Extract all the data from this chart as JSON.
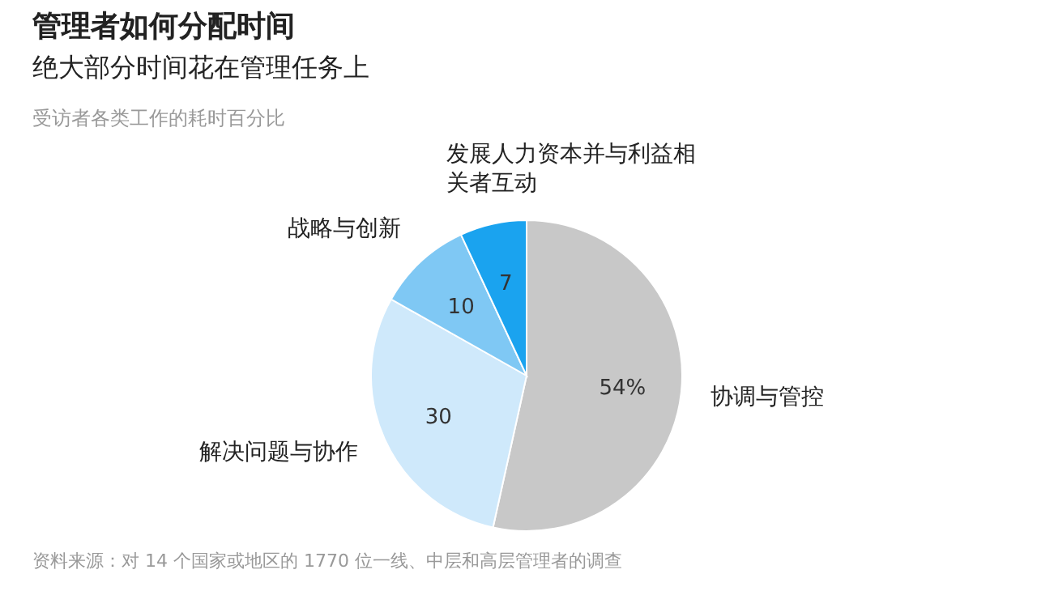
{
  "chart_data": {
    "type": "pie",
    "title": "管理者如何分配时间",
    "subtitle": "绝大部分时间花在管理任务上",
    "annotations": [
      "受访者各类工作的耗时百分比",
      "资料来源：对 14 个国家或地区的 1770 位一线、中层和高层管理者的调查"
    ],
    "categories": [
      "协调与管控",
      "解决问题与协作",
      "战略与创新",
      "发展人力资本并与利益相关者互动"
    ],
    "values": [
      54,
      30,
      10,
      7
    ],
    "value_labels": [
      "54%",
      "30",
      "10",
      "7"
    ],
    "colors": [
      "#c8c8c8",
      "#cfe9fb",
      "#7fc8f4",
      "#1aa3ef"
    ]
  }
}
